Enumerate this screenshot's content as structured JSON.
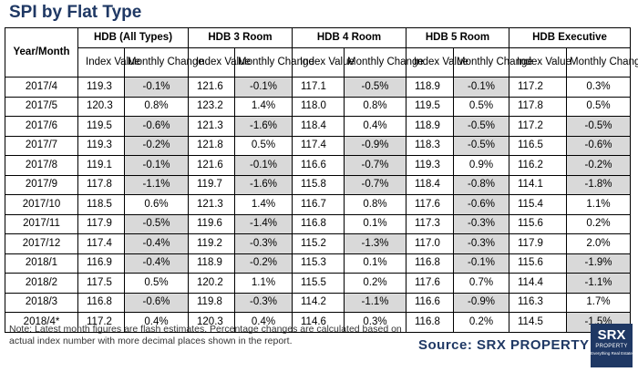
{
  "title": "SPI by Flat Type",
  "table": {
    "corner_header": "Year/Month",
    "groups": [
      "HDB (All Types)",
      "HDB 3 Room",
      "HDB 4 Room",
      "HDB 5 Room",
      "HDB Executive"
    ],
    "sub_index": "Index Value",
    "sub_change": "Monthly Change",
    "rows": [
      {
        "period": "2017/4",
        "values": [
          "119.3",
          "-0.1%",
          "121.6",
          "-0.1%",
          "117.1",
          "-0.5%",
          "118.9",
          "-0.1%",
          "117.2",
          "0.3%"
        ]
      },
      {
        "period": "2017/5",
        "values": [
          "120.3",
          "0.8%",
          "123.2",
          "1.4%",
          "118.0",
          "0.8%",
          "119.5",
          "0.5%",
          "117.8",
          "0.5%"
        ]
      },
      {
        "period": "2017/6",
        "values": [
          "119.5",
          "-0.6%",
          "121.3",
          "-1.6%",
          "118.4",
          "0.4%",
          "118.9",
          "-0.5%",
          "117.2",
          "-0.5%"
        ]
      },
      {
        "period": "2017/7",
        "values": [
          "119.3",
          "-0.2%",
          "121.8",
          "0.5%",
          "117.4",
          "-0.9%",
          "118.3",
          "-0.5%",
          "116.5",
          "-0.6%"
        ]
      },
      {
        "period": "2017/8",
        "values": [
          "119.1",
          "-0.1%",
          "121.6",
          "-0.1%",
          "116.6",
          "-0.7%",
          "119.3",
          "0.9%",
          "116.2",
          "-0.2%"
        ]
      },
      {
        "period": "2017/9",
        "values": [
          "117.8",
          "-1.1%",
          "119.7",
          "-1.6%",
          "115.8",
          "-0.7%",
          "118.4",
          "-0.8%",
          "114.1",
          "-1.8%"
        ]
      },
      {
        "period": "2017/10",
        "values": [
          "118.5",
          "0.6%",
          "121.3",
          "1.4%",
          "116.7",
          "0.8%",
          "117.6",
          "-0.6%",
          "115.4",
          "1.1%"
        ]
      },
      {
        "period": "2017/11",
        "values": [
          "117.9",
          "-0.5%",
          "119.6",
          "-1.4%",
          "116.8",
          "0.1%",
          "117.3",
          "-0.3%",
          "115.6",
          "0.2%"
        ]
      },
      {
        "period": "2017/12",
        "values": [
          "117.4",
          "-0.4%",
          "119.2",
          "-0.3%",
          "115.2",
          "-1.3%",
          "117.0",
          "-0.3%",
          "117.9",
          "2.0%"
        ]
      },
      {
        "period": "2018/1",
        "values": [
          "116.9",
          "-0.4%",
          "118.9",
          "-0.2%",
          "115.3",
          "0.1%",
          "116.8",
          "-0.1%",
          "115.6",
          "-1.9%"
        ]
      },
      {
        "period": "2018/2",
        "values": [
          "117.5",
          "0.5%",
          "120.2",
          "1.1%",
          "115.5",
          "0.2%",
          "117.6",
          "0.7%",
          "114.4",
          "-1.1%"
        ]
      },
      {
        "period": "2018/3",
        "values": [
          "116.8",
          "-0.6%",
          "119.8",
          "-0.3%",
          "114.2",
          "-1.1%",
          "116.6",
          "-0.9%",
          "116.3",
          "1.7%"
        ]
      },
      {
        "period": "2018/4*",
        "values": [
          "117.2",
          "0.4%",
          "120.3",
          "0.4%",
          "114.6",
          "0.3%",
          "116.8",
          "0.2%",
          "114.5",
          "-1.5%"
        ]
      }
    ]
  },
  "note": "Note: Latest month figures are flash estimates. Percentage changes are calculated based on actual index number with more decimal places shown in the report.",
  "source": "Source:  SRX PROPERTY",
  "logo": {
    "line1": "SRX",
    "line2": "PROPERTY",
    "line3": "Everything Real Estate"
  },
  "colors": {
    "title": "#1f3864",
    "negative_shade": "#d9d9d9",
    "logo_bg": "#1f3864"
  }
}
